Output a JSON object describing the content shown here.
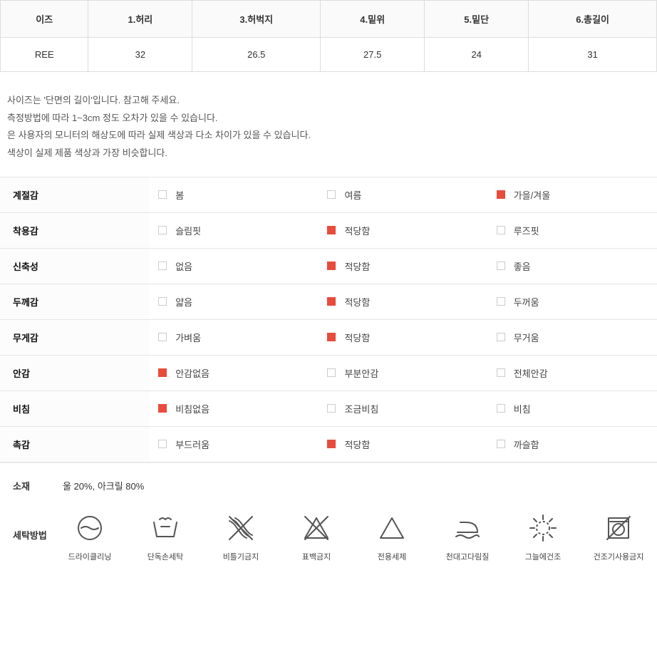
{
  "colors": {
    "border": "#dddddd",
    "attr_border": "#e5e5e5",
    "text": "#333333",
    "muted": "#555555",
    "accent": "#e74c3c",
    "checkbox_border": "#cccccc",
    "bg": "#ffffff",
    "header_bg": "#fafafa"
  },
  "sizeTable": {
    "headers": [
      "이즈",
      "1.허리",
      "3.허벅지",
      "4.밑위",
      "5.밑단",
      "6.총길이"
    ],
    "rows": [
      [
        "REE",
        "32",
        "26.5",
        "27.5",
        "24",
        "31"
      ]
    ]
  },
  "notes": [
    "사이즈는 '단면의 길이'입니다. 참고해 주세요.",
    "측정방법에 따라 1~3cm 정도 오차가 있을 수 있습니다.",
    "은 사용자의 모니터의 해상도에 따라 실제 색상과 다소 차이가 있을 수 있습니다.",
    "색상이 실제 제품 색상과 가장 비슷합니다."
  ],
  "attributes": [
    {
      "label": "계절감",
      "options": [
        {
          "text": "봄",
          "checked": false
        },
        {
          "text": "여름",
          "checked": false
        },
        {
          "text": "가을/겨울",
          "checked": true
        }
      ]
    },
    {
      "label": "착용감",
      "options": [
        {
          "text": "슬림핏",
          "checked": false
        },
        {
          "text": "적당함",
          "checked": true
        },
        {
          "text": "루즈핏",
          "checked": false
        }
      ]
    },
    {
      "label": "신축성",
      "options": [
        {
          "text": "없음",
          "checked": false
        },
        {
          "text": "적당함",
          "checked": true
        },
        {
          "text": "좋음",
          "checked": false
        }
      ]
    },
    {
      "label": "두께감",
      "options": [
        {
          "text": "얇음",
          "checked": false
        },
        {
          "text": "적당함",
          "checked": true
        },
        {
          "text": "두꺼움",
          "checked": false
        }
      ]
    },
    {
      "label": "무게감",
      "options": [
        {
          "text": "가벼움",
          "checked": false
        },
        {
          "text": "적당함",
          "checked": true
        },
        {
          "text": "무거움",
          "checked": false
        }
      ]
    },
    {
      "label": "안감",
      "options": [
        {
          "text": "안감없음",
          "checked": true
        },
        {
          "text": "부분안감",
          "checked": false
        },
        {
          "text": "전체안감",
          "checked": false
        }
      ]
    },
    {
      "label": "비침",
      "options": [
        {
          "text": "비침없음",
          "checked": true
        },
        {
          "text": "조금비침",
          "checked": false
        },
        {
          "text": "비침",
          "checked": false
        }
      ]
    },
    {
      "label": "촉감",
      "options": [
        {
          "text": "부드러움",
          "checked": false
        },
        {
          "text": "적당함",
          "checked": true
        },
        {
          "text": "까슬함",
          "checked": false
        }
      ]
    }
  ],
  "material": {
    "label": "소재",
    "value": "울 20%, 아크릴 80%"
  },
  "washing": {
    "label": "세탁방법",
    "items": [
      {
        "icon": "dryclean",
        "text": "드라이클리닝"
      },
      {
        "icon": "handwash",
        "text": "단독손세탁"
      },
      {
        "icon": "nowring",
        "text": "비틀기금지"
      },
      {
        "icon": "nobleach",
        "text": "표백금지"
      },
      {
        "icon": "detergent",
        "text": "전용세제"
      },
      {
        "icon": "ironcloth",
        "text": "천대고다림질"
      },
      {
        "icon": "shadedry",
        "text": "그늘에건조"
      },
      {
        "icon": "notumble",
        "text": "건조기사용금지"
      }
    ]
  }
}
